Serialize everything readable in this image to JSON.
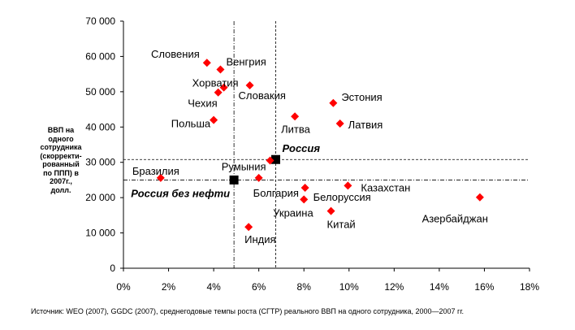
{
  "chart_data": {
    "type": "scatter",
    "xlim": [
      0,
      18
    ],
    "ylim": [
      0,
      70000
    ],
    "x_ticks": [
      "0%",
      "2%",
      "4%",
      "6%",
      "8%",
      "10%",
      "12%",
      "14%",
      "16%",
      "18%"
    ],
    "y_ticks": [
      "0",
      "10 000",
      "20 000",
      "30 000",
      "40 000",
      "50 000",
      "60 000",
      "70 000"
    ],
    "ylabel_lines": [
      "ВВП на",
      "одного",
      "сотрудника",
      "(скорректи-",
      "рованный",
      "по ППП) в",
      "2007г.,",
      "долл."
    ],
    "source": "Источник: WEO (2007), GGDC (2007), среднегодовые темпы роста (СГТР) реального ВВП на одного сотрудника, 2000—2007 гг.",
    "grid": false,
    "points": [
      {
        "label": "Словения",
        "x": 3.7,
        "y": 58200,
        "marker": "diamond",
        "color": "#ff0000"
      },
      {
        "label": "Венгрия",
        "x": 4.3,
        "y": 56300,
        "marker": "diamond",
        "color": "#ff0000"
      },
      {
        "label": "Хорватия",
        "x": 4.45,
        "y": 51200,
        "marker": "diamond",
        "color": "#ff0000"
      },
      {
        "label": "Чехия",
        "x": 4.2,
        "y": 49800,
        "marker": "diamond",
        "color": "#ff0000"
      },
      {
        "label": "Словакия",
        "x": 5.6,
        "y": 51800,
        "marker": "diamond",
        "color": "#ff0000"
      },
      {
        "label": "Польша",
        "x": 4.0,
        "y": 42000,
        "marker": "diamond",
        "color": "#ff0000"
      },
      {
        "label": "Эстония",
        "x": 9.3,
        "y": 46800,
        "marker": "diamond",
        "color": "#ff0000"
      },
      {
        "label": "Литва",
        "x": 7.6,
        "y": 43000,
        "marker": "diamond",
        "color": "#ff0000"
      },
      {
        "label": "Латвия",
        "x": 9.6,
        "y": 41000,
        "marker": "diamond",
        "color": "#ff0000"
      },
      {
        "label": "Россия",
        "x": 6.75,
        "y": 30800,
        "marker": "square",
        "color": "#000000"
      },
      {
        "label": "Румыния",
        "x": 6.5,
        "y": 30500,
        "marker": "diamond",
        "color": "#ff0000"
      },
      {
        "label": "Бразилия",
        "x": 1.65,
        "y": 25600,
        "marker": "diamond",
        "color": "#ff0000"
      },
      {
        "label": "Россия без нефти",
        "x": 4.9,
        "y": 25000,
        "marker": "square",
        "color": "#000000"
      },
      {
        "label": "Болгария",
        "x": 6.0,
        "y": 25600,
        "marker": "diamond",
        "color": "#ff0000"
      },
      {
        "label": "Белоруссия",
        "x": 8.05,
        "y": 22800,
        "marker": "diamond",
        "color": "#ff0000"
      },
      {
        "label": "Казахстан",
        "x": 9.95,
        "y": 23400,
        "marker": "diamond",
        "color": "#ff0000"
      },
      {
        "label": "Украина",
        "x": 8.0,
        "y": 19500,
        "marker": "diamond",
        "color": "#ff0000"
      },
      {
        "label": "Китай",
        "x": 9.2,
        "y": 16200,
        "marker": "diamond",
        "color": "#ff0000"
      },
      {
        "label": "Индия",
        "x": 5.55,
        "y": 11700,
        "marker": "diamond",
        "color": "#ff0000"
      },
      {
        "label": "Азербайджан",
        "x": 15.8,
        "y": 20100,
        "marker": "diamond",
        "color": "#ff0000"
      }
    ],
    "reference_lines": [
      {
        "orientation": "vertical",
        "value": 4.9,
        "style": "dash-dot",
        "color": "#000000"
      },
      {
        "orientation": "vertical",
        "value": 6.75,
        "style": "dashed",
        "color": "#000000"
      },
      {
        "orientation": "horizontal",
        "value": 30800,
        "style": "dashed",
        "color": "#000000"
      },
      {
        "orientation": "horizontal",
        "value": 25000,
        "style": "dash-dot",
        "color": "#000000"
      }
    ]
  }
}
